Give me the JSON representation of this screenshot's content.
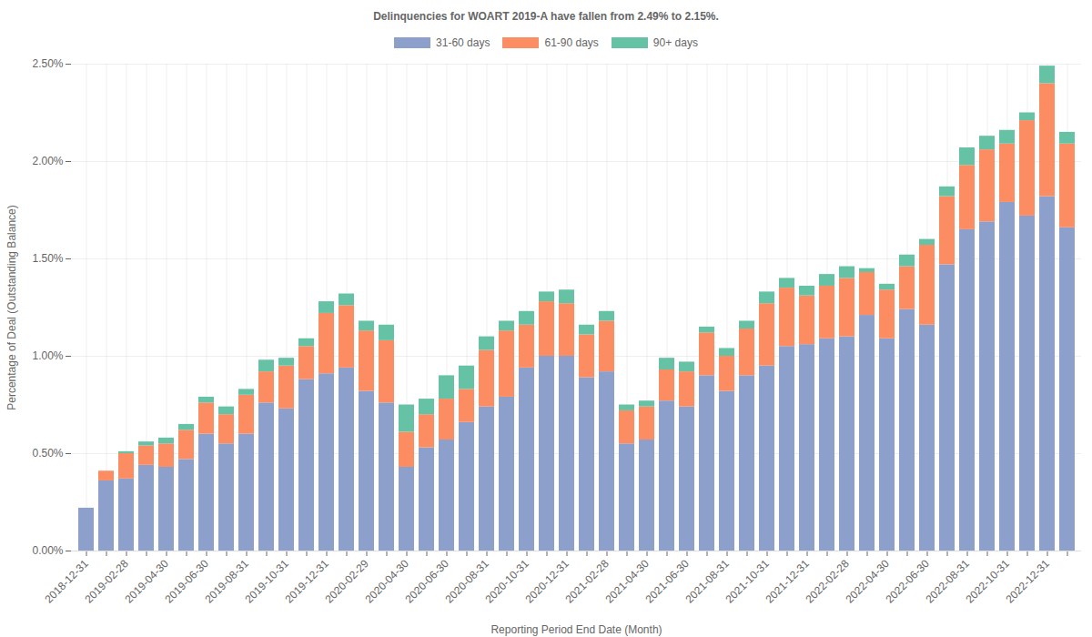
{
  "chart_data": {
    "type": "bar",
    "title": "Delinquencies for WOART 2019-A have fallen from 2.49% to 2.15%.",
    "x_label": "Reporting Period End Date (Month)",
    "y_label": "Percentage of Deal (Outstanding Balance)",
    "stacked": true,
    "grid": true,
    "legend": "top",
    "categories": [
      "2018-12-31",
      null,
      "2019-02-28",
      null,
      "2019-04-30",
      null,
      "2019-06-30",
      null,
      "2019-08-31",
      null,
      "2019-10-31",
      null,
      "2019-12-31",
      null,
      "2020-02-29",
      null,
      "2020-04-30",
      null,
      "2020-06-30",
      null,
      "2020-08-31",
      null,
      "2020-10-31",
      null,
      "2020-12-31",
      null,
      "2021-02-28",
      null,
      "2021-04-30",
      null,
      "2021-06-30",
      null,
      "2021-08-31",
      null,
      "2021-10-31",
      null,
      "2021-12-31",
      null,
      "2022-02-28",
      null,
      "2022-04-30",
      null,
      "2022-06-30",
      null,
      "2022-08-31",
      null,
      "2022-10-31",
      null,
      "2022-12-31",
      null
    ],
    "series": [
      {
        "name": "31-60 days",
        "color": "#8da0cb",
        "values": [
          0.22,
          0.36,
          0.37,
          0.44,
          0.43,
          0.47,
          0.6,
          0.55,
          0.6,
          0.76,
          0.73,
          0.88,
          0.91,
          0.94,
          0.82,
          0.76,
          0.43,
          0.53,
          0.57,
          0.66,
          0.74,
          0.79,
          0.94,
          1.0,
          1.0,
          0.89,
          0.92,
          0.55,
          0.57,
          0.77,
          0.74,
          0.9,
          0.82,
          0.9,
          0.95,
          1.05,
          1.06,
          1.09,
          1.1,
          1.21,
          1.09,
          1.24,
          1.16,
          1.47,
          1.65,
          1.69,
          1.79,
          1.72,
          1.82,
          1.66
        ]
      },
      {
        "name": "61-90 days",
        "color": "#fc8d62",
        "values": [
          0,
          0.05,
          0.13,
          0.1,
          0.12,
          0.15,
          0.16,
          0.15,
          0.2,
          0.16,
          0.22,
          0.17,
          0.31,
          0.32,
          0.31,
          0.32,
          0.18,
          0.17,
          0.21,
          0.17,
          0.29,
          0.34,
          0.22,
          0.28,
          0.27,
          0.22,
          0.26,
          0.17,
          0.17,
          0.16,
          0.18,
          0.22,
          0.18,
          0.24,
          0.32,
          0.3,
          0.25,
          0.27,
          0.3,
          0.22,
          0.25,
          0.22,
          0.41,
          0.35,
          0.33,
          0.37,
          0.3,
          0.49,
          0.58,
          0.43
        ]
      },
      {
        "name": "90+ days",
        "color": "#66c2a5",
        "values": [
          0,
          0,
          0.01,
          0.02,
          0.03,
          0.03,
          0.03,
          0.04,
          0.03,
          0.06,
          0.04,
          0.04,
          0.06,
          0.06,
          0.05,
          0.08,
          0.14,
          0.08,
          0.12,
          0.12,
          0.07,
          0.05,
          0.07,
          0.05,
          0.07,
          0.05,
          0.05,
          0.03,
          0.03,
          0.06,
          0.05,
          0.03,
          0.04,
          0.04,
          0.06,
          0.05,
          0.05,
          0.06,
          0.06,
          0.02,
          0.03,
          0.06,
          0.03,
          0.05,
          0.09,
          0.07,
          0.07,
          0.04,
          0.09,
          0.06
        ]
      }
    ],
    "ylim": [
      0,
      2.5
    ],
    "yticks": [
      {
        "value": 0,
        "label": "0.00%"
      },
      {
        "value": 0.5,
        "label": "0.50%"
      },
      {
        "value": 1.0,
        "label": "1.00%"
      },
      {
        "value": 1.5,
        "label": "1.50%"
      },
      {
        "value": 2.0,
        "label": "2.00%"
      },
      {
        "value": 2.5,
        "label": "2.50%"
      }
    ]
  }
}
